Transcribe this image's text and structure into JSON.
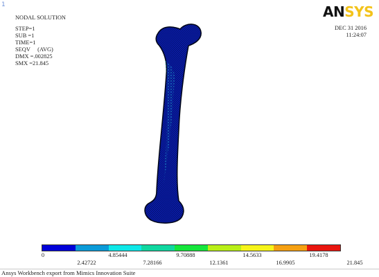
{
  "window_number": "1",
  "info": {
    "title": "NODAL SOLUTION",
    "step": "STEP=1",
    "sub": "SUB =1",
    "time": "TIME=1",
    "seqv": "SEQV     (AVG)",
    "dmx": "DMX =.002825",
    "smx": "SMX =21.845"
  },
  "logo": {
    "an": "AN",
    "sys": "SYS"
  },
  "date": {
    "date": "DEC 31 2016",
    "time": "11:24:07"
  },
  "legend": {
    "colors": [
      "#0000d8",
      "#0b9bd8",
      "#0ee8e8",
      "#10d7a0",
      "#15e63c",
      "#b9ef17",
      "#f6f41a",
      "#f5a012",
      "#e9160f"
    ],
    "row1": [
      "0",
      "4.85444",
      "9.70888",
      "14.5633",
      "19.4178"
    ],
    "row2": [
      "2.42722",
      "7.28166",
      "12.1361",
      "16.9905",
      "21.845"
    ]
  },
  "footer_title": "Ansys Workbench export from Mimics Innovation Suite"
}
